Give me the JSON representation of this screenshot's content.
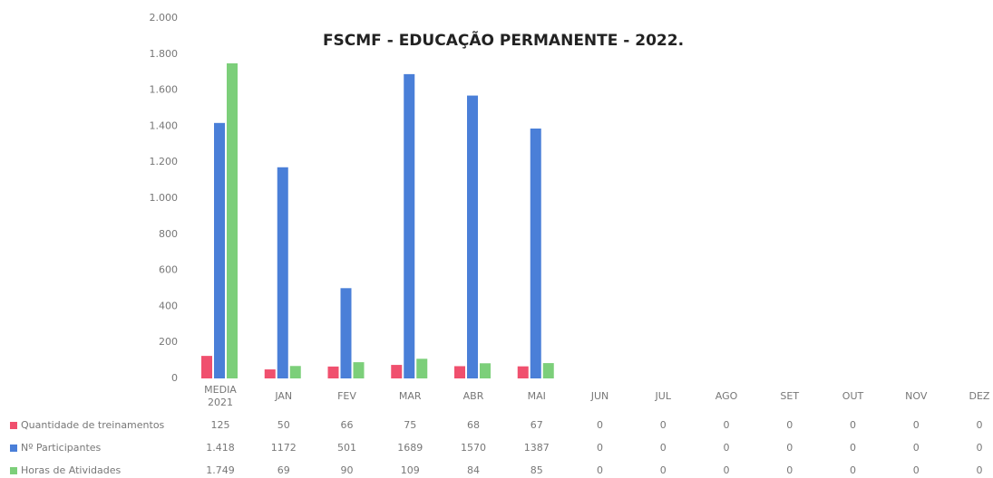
{
  "chart_data": {
    "type": "bar",
    "title": "FSCMF - EDUCAÇÃO PERMANENTE - 2022.",
    "categories": [
      "MEDIA 2021",
      "JAN",
      "FEV",
      "MAR",
      "ABR",
      "MAI",
      "JUN",
      "JUL",
      "AGO",
      "SET",
      "OUT",
      "NOV",
      "DEZ"
    ],
    "series": [
      {
        "name": "Quantidade de treinamentos",
        "color": "#f0506e",
        "values": [
          125,
          50,
          66,
          75,
          68,
          67,
          0,
          0,
          0,
          0,
          0,
          0,
          0
        ]
      },
      {
        "name": "Nº Participantes",
        "color": "#4a7fd8",
        "values": [
          1418,
          1172,
          501,
          1689,
          1570,
          1387,
          0,
          0,
          0,
          0,
          0,
          0,
          0
        ],
        "value_labels": [
          "1.418",
          "1172",
          "501",
          "1689",
          "1570",
          "1387",
          "0",
          "0",
          "0",
          "0",
          "0",
          "0",
          "0"
        ]
      },
      {
        "name": "Horas de Atividades",
        "color": "#7ccf7a",
        "values": [
          1749,
          69,
          90,
          109,
          84,
          85,
          0,
          0,
          0,
          0,
          0,
          0,
          0
        ],
        "value_labels": [
          "1.749",
          "69",
          "90",
          "109",
          "84",
          "85",
          "0",
          "0",
          "0",
          "0",
          "0",
          "0",
          "0"
        ]
      }
    ],
    "ylim": [
      0,
      2000
    ],
    "yticks": [
      0,
      200,
      400,
      600,
      800,
      {
        "value": 1000,
        "label": "1.000"
      },
      {
        "value": 1200,
        "label": "1.200"
      },
      {
        "value": 1400,
        "label": "1.400"
      },
      {
        "value": 1600,
        "label": "1.600"
      },
      {
        "value": 1800,
        "label": "1.800"
      },
      {
        "value": 2000,
        "label": "2.000"
      }
    ],
    "grid": false
  }
}
